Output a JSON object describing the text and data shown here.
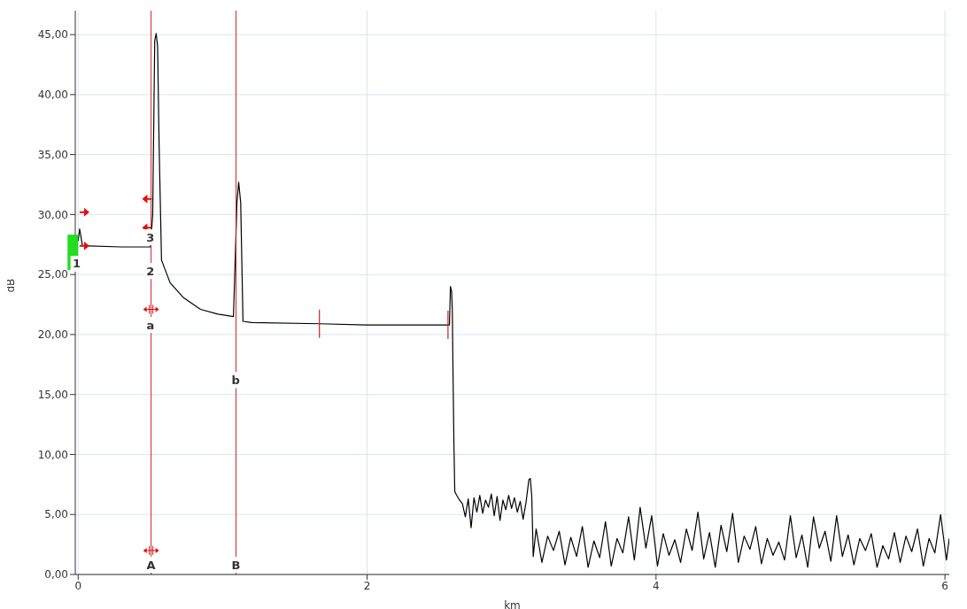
{
  "chart_data": {
    "type": "line",
    "xlabel": "km",
    "ylabel": "dB",
    "x": [
      0,
      0.01,
      0.03,
      0.3,
      0.5,
      0.516,
      0.53,
      0.54,
      0.55,
      0.56,
      0.577,
      0.637,
      0.727,
      0.847,
      0.967,
      1.075,
      1.099,
      1.111,
      1.125,
      1.141,
      1.2,
      1.67,
      2.0,
      2.57,
      2.577,
      2.585,
      2.59,
      2.595,
      2.601,
      2.607,
      2.62,
      2.64,
      2.66,
      2.68,
      2.7,
      2.72,
      2.74,
      2.76,
      2.78,
      2.8,
      2.82,
      2.84,
      2.86,
      2.88,
      2.9,
      2.92,
      2.94,
      2.96,
      2.98,
      3.0,
      3.02,
      3.04,
      3.06,
      3.08,
      3.1,
      3.12,
      3.13,
      3.14,
      3.15,
      3.17,
      3.21,
      3.25,
      3.29,
      3.33,
      3.37,
      3.41,
      3.45,
      3.49,
      3.53,
      3.57,
      3.61,
      3.65,
      3.69,
      3.73,
      3.77,
      3.81,
      3.85,
      3.89,
      3.93,
      3.97,
      4.01,
      4.05,
      4.09,
      4.13,
      4.17,
      4.21,
      4.25,
      4.29,
      4.33,
      4.37,
      4.41,
      4.45,
      4.49,
      4.53,
      4.57,
      4.61,
      4.65,
      4.69,
      4.73,
      4.77,
      4.81,
      4.85,
      4.89,
      4.93,
      4.97,
      5.01,
      5.05,
      5.09,
      5.13,
      5.17,
      5.21,
      5.25,
      5.29,
      5.33,
      5.37,
      5.41,
      5.45,
      5.49,
      5.53,
      5.57,
      5.61,
      5.65,
      5.69,
      5.73,
      5.77,
      5.81,
      5.85,
      5.89,
      5.93,
      5.97,
      6.01,
      6.03
    ],
    "series": [
      {
        "color": "#000000",
        "values": [
          27.8,
          28.8,
          27.4,
          27.3,
          27.3,
          30,
          44.5,
          45.1,
          44,
          36,
          26.2,
          24.3,
          23.1,
          22.1,
          21.7,
          21.5,
          31,
          32.7,
          31,
          21.1,
          21.0,
          20.9,
          20.8,
          20.8,
          24.0,
          23.6,
          22,
          16.6,
          11,
          6.9,
          6.6,
          6.2,
          5.9,
          4.8,
          6.3,
          3.9,
          6.4,
          5.2,
          6.6,
          5.1,
          6.2,
          5.6,
          6.7,
          4.9,
          6.5,
          4.5,
          6.2,
          5.4,
          6.6,
          5.5,
          6.4,
          5.2,
          6.1,
          4.6,
          6.0,
          7.9,
          8.0,
          6.5,
          1.5,
          3.8,
          1.0,
          3.2,
          2.0,
          3.6,
          0.8,
          3.1,
          1.5,
          4.0,
          0.6,
          2.8,
          1.4,
          4.4,
          0.7,
          3.0,
          1.8,
          4.8,
          1.2,
          5.6,
          2.2,
          4.9,
          0.7,
          3.4,
          1.6,
          2.9,
          1.0,
          3.8,
          2.0,
          5.2,
          1.3,
          3.5,
          0.6,
          4.1,
          1.9,
          5.1,
          1.0,
          3.2,
          2.1,
          4.0,
          0.9,
          3.0,
          1.6,
          2.7,
          1.2,
          4.9,
          1.4,
          3.3,
          0.6,
          4.8,
          2.2,
          3.6,
          1.1,
          4.9,
          1.5,
          3.3,
          0.8,
          3.0,
          2.0,
          3.4,
          0.6,
          2.4,
          1.3,
          3.5,
          1.0,
          3.2,
          1.9,
          3.8,
          0.7,
          3.0,
          1.8,
          5.0,
          1.2,
          3.0
        ]
      }
    ],
    "xlim": [
      -0.02,
      6.03
    ],
    "ylim": [
      0,
      47
    ],
    "xticks": [
      0,
      2,
      4,
      6
    ],
    "yticks": [
      {
        "value": 0,
        "label": "0,00"
      },
      {
        "value": 5,
        "label": "5,00"
      },
      {
        "value": 10,
        "label": "10,00"
      },
      {
        "value": 15,
        "label": "15,00"
      },
      {
        "value": 20,
        "label": "20,00"
      },
      {
        "value": 25,
        "label": "25,00"
      },
      {
        "value": 30,
        "label": "30,00"
      },
      {
        "value": 35,
        "label": "35,00"
      },
      {
        "value": 40,
        "label": "40,00"
      },
      {
        "value": 45,
        "label": "45,00"
      }
    ],
    "grid": true,
    "marker": "none",
    "line_style": "solid",
    "ref_lines": [
      {
        "axis": "x",
        "value": 0.505,
        "label": "A",
        "color": "#cc2222"
      },
      {
        "axis": "x",
        "value": 1.093,
        "label": "B",
        "color": "#cc2222"
      }
    ],
    "annotations": [
      {
        "text": "1",
        "x": -0.01,
        "y": 25.9
      },
      {
        "text": "2",
        "x": 0.5,
        "y": 25.3
      },
      {
        "text": "3",
        "x": 0.5,
        "y": 28.1
      },
      {
        "text": "a",
        "x": 0.5,
        "y": 20.8
      },
      {
        "text": "b",
        "x": 1.09,
        "y": 16.2
      }
    ]
  }
}
